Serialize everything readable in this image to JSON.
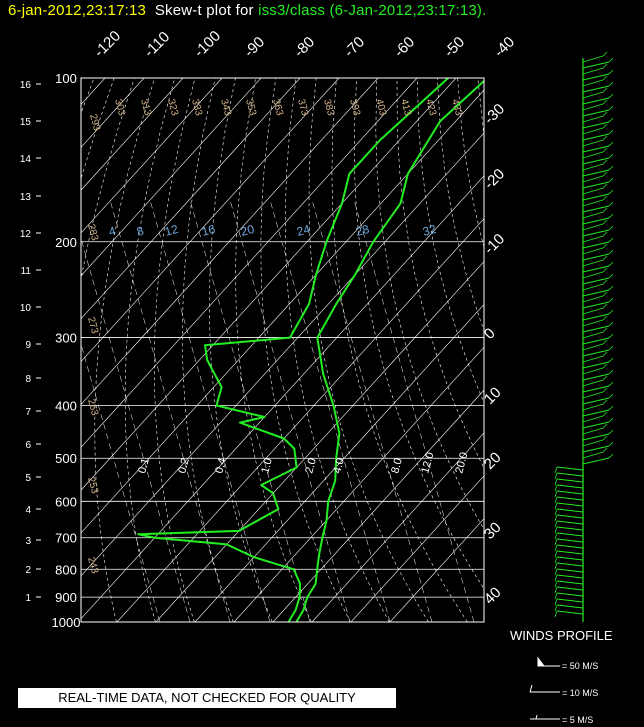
{
  "header": {
    "station_time": "6-jan-2012,23:17:13",
    "plot_label": "Skew-t plot for",
    "source": "iss3/class (6-Jan-2012,23:17:13)."
  },
  "footer": {
    "quality_notice": "REAL-TIME DATA, NOT CHECKED FOR QUALITY"
  },
  "winds": {
    "title": "WINDS PROFILE",
    "legend": [
      "= 50 M/S",
      "= 10 M/S",
      "= 5 M/S"
    ]
  },
  "colors": {
    "background": "#000000",
    "profile": "#22ee22",
    "grid": "#ffffff",
    "dry_adiabat_labels": "#d2b48c",
    "mixing_ratio_labels": "#6fa8dc",
    "title_time": "#ffff00"
  },
  "chart_data": {
    "type": "skew-t",
    "pressure_levels_hpa": [
      100,
      200,
      300,
      400,
      500,
      600,
      700,
      800,
      900,
      1000
    ],
    "pressure_lim_hpa": [
      100,
      1000
    ],
    "height_ticks_km": [
      "16",
      "15",
      "14",
      "13",
      "12",
      "11",
      "10",
      "9",
      "8",
      "7",
      "6",
      "5",
      "4",
      "3",
      "2",
      "1"
    ],
    "top_temperature_labels": [
      "-120",
      "-110",
      "-100",
      "-90",
      "-80",
      "-70",
      "-60",
      "-50",
      "-40"
    ],
    "right_temperature_labels": [
      "-30",
      "-20",
      "-10",
      "0",
      "10",
      "20",
      "30",
      "40"
    ],
    "dry_adiabat_labels": [
      "293",
      "303",
      "313",
      "323",
      "333",
      "343",
      "353",
      "363",
      "373",
      "383",
      "393",
      "403",
      "413",
      "423",
      "433",
      "283",
      "273",
      "263",
      "253",
      "243"
    ],
    "mixing_ratio_labels_upper": [
      "4",
      "8",
      "12",
      "16",
      "20",
      "24",
      "28",
      "32"
    ],
    "mixing_ratio_labels_lower": [
      "0.1",
      "0.2",
      "0.4",
      "1.0",
      "2.0",
      "4.0",
      "8.0",
      "12.0",
      "20.0"
    ],
    "series": [
      {
        "name": "temperature",
        "points": [
          [
            100,
            -62
          ],
          [
            120,
            -64
          ],
          [
            150,
            -60
          ],
          [
            170,
            -55
          ],
          [
            200,
            -53
          ],
          [
            230,
            -50
          ],
          [
            260,
            -48
          ],
          [
            300,
            -45
          ],
          [
            350,
            -35
          ],
          [
            400,
            -25
          ],
          [
            450,
            -17
          ],
          [
            500,
            -12
          ],
          [
            550,
            -7
          ],
          [
            600,
            -4
          ],
          [
            650,
            0
          ],
          [
            700,
            3
          ],
          [
            750,
            6
          ],
          [
            800,
            9
          ],
          [
            850,
            12
          ],
          [
            900,
            13
          ],
          [
            950,
            15
          ],
          [
            1000,
            16
          ]
        ]
      },
      {
        "name": "dewpoint",
        "points": [
          [
            100,
            -72
          ],
          [
            130,
            -75
          ],
          [
            150,
            -75
          ],
          [
            170,
            -70
          ],
          [
            200,
            -65
          ],
          [
            230,
            -60
          ],
          [
            260,
            -55
          ],
          [
            300,
            -52
          ],
          [
            310,
            -72
          ],
          [
            330,
            -68
          ],
          [
            370,
            -58
          ],
          [
            400,
            -55
          ],
          [
            420,
            -40
          ],
          [
            430,
            -45
          ],
          [
            460,
            -30
          ],
          [
            480,
            -25
          ],
          [
            520,
            -20
          ],
          [
            560,
            -25
          ],
          [
            580,
            -20
          ],
          [
            620,
            -15
          ],
          [
            680,
            -20
          ],
          [
            690,
            -45
          ],
          [
            700,
            -40
          ],
          [
            720,
            -20
          ],
          [
            760,
            -10
          ],
          [
            800,
            3
          ],
          [
            850,
            8
          ],
          [
            900,
            11
          ],
          [
            950,
            13
          ],
          [
            1000,
            14
          ]
        ]
      }
    ]
  }
}
